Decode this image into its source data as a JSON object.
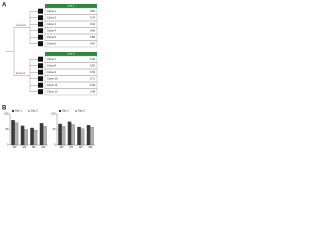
{
  "panel_a": {
    "label": "A",
    "tree_labels": [
      "Ancestor",
      "Evolved"
    ],
    "groups": [
      {
        "header": "Line 1",
        "rows": [
          {
            "name": "Clone 1",
            "value": 0.82
          },
          {
            "name": "Clone 2",
            "value": 0.74
          },
          {
            "name": "Clone 3",
            "value": 0.91
          },
          {
            "name": "Clone 4",
            "value": 0.66
          },
          {
            "name": "Clone 5",
            "value": 0.58
          },
          {
            "name": "Clone 6",
            "value": 0.87
          }
        ]
      },
      {
        "header": "Line 2",
        "rows": [
          {
            "name": "Clone 7",
            "value": 0.45
          },
          {
            "name": "Clone 8",
            "value": 0.52
          },
          {
            "name": "Clone 9",
            "value": 0.63
          },
          {
            "name": "Clone 10",
            "value": 0.71
          },
          {
            "name": "Clone 11",
            "value": 0.39
          },
          {
            "name": "Clone 12",
            "value": 0.48
          }
        ]
      }
    ]
  },
  "panel_b": {
    "label": "B"
  },
  "chart_data": [
    {
      "type": "bar",
      "categories": [
        "WT",
        "M1",
        "M2",
        "M3"
      ],
      "series": [
        {
          "name": "Day 1",
          "color": "#3a3a3a",
          "values": [
            80,
            62,
            55,
            70
          ]
        },
        {
          "name": "Day 2",
          "color": "#b0b0b0",
          "values": [
            72,
            50,
            48,
            60
          ]
        }
      ],
      "ylim": [
        0,
        100
      ],
      "yticks": [
        0,
        50,
        100
      ]
    },
    {
      "type": "bar",
      "categories": [
        "WT",
        "M1",
        "M2",
        "M3"
      ],
      "series": [
        {
          "name": "Day 1",
          "color": "#3a3a3a",
          "values": [
            68,
            75,
            58,
            64
          ]
        },
        {
          "name": "Day 2",
          "color": "#b0b0b0",
          "values": [
            60,
            66,
            52,
            57
          ]
        }
      ],
      "ylim": [
        0,
        100
      ],
      "yticks": [
        0,
        50,
        100
      ]
    }
  ]
}
